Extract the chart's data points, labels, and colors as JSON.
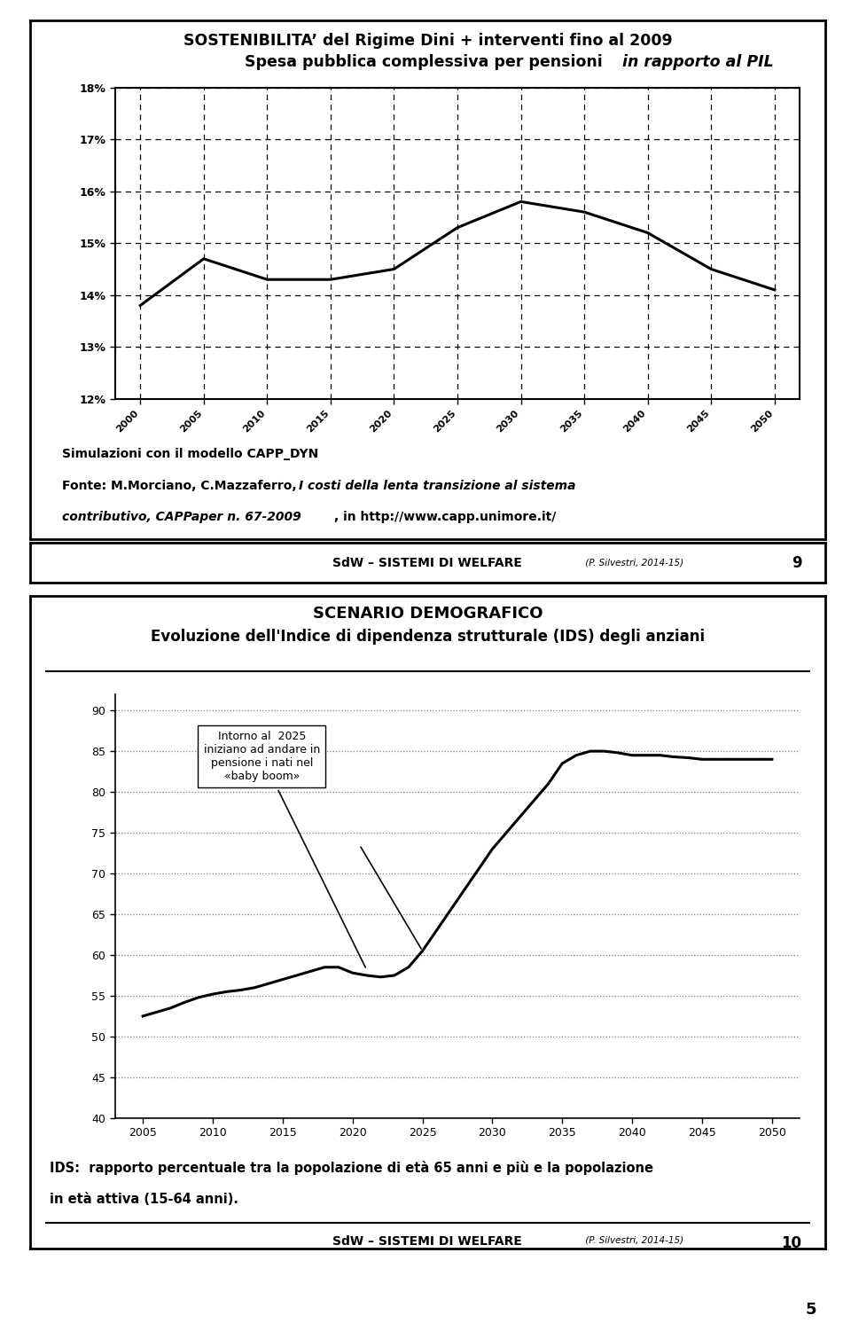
{
  "page_bg": "#ffffff",
  "slide1_title1": "SOSTENIBILITA’ del Rigime Dini + interventi fino al 2009",
  "slide1_title2": "Spesa pubblica complessiva per pensioni ",
  "slide1_title2_italic": "in rapporto al PIL",
  "chart1_x": [
    2000,
    2005,
    2010,
    2015,
    2020,
    2025,
    2030,
    2035,
    2040,
    2045,
    2050
  ],
  "chart1_y": [
    13.8,
    14.7,
    14.3,
    14.3,
    14.5,
    15.3,
    15.8,
    15.6,
    15.2,
    14.5,
    14.1
  ],
  "chart1_ylim": [
    12,
    18
  ],
  "chart1_yticks": [
    12,
    13,
    14,
    15,
    16,
    17,
    18
  ],
  "chart1_ytick_labels": [
    "12%",
    "13%",
    "14%",
    "15%",
    "16%",
    "17%",
    "18%"
  ],
  "slide1_note1": "Simulazioni con il modello CAPP_DYN",
  "slide1_note2a": "Fonte: M.Morciano, C.Mazzaferro, ",
  "slide1_note2b": "I costi della lenta transizione al sistema",
  "slide1_note3b": "contributivo, CAPPaper n. 67-2009",
  "slide1_note3c": ", in http://www.capp.unimore.it/",
  "footer1_main": "SdW – SISTEMI DI WELFARE",
  "footer1_small": " (P. Silvestri, 2014-15)",
  "footer1_num": "9",
  "slide2_title1": "SCENARIO DEMOGRAFICO",
  "slide2_title2": "Evoluzione dell'Indice di dipendenza strutturale (IDS) degli anziani",
  "chart2_x": [
    2005,
    2006,
    2007,
    2008,
    2009,
    2010,
    2011,
    2012,
    2013,
    2014,
    2015,
    2016,
    2017,
    2018,
    2019,
    2020,
    2021,
    2022,
    2023,
    2024,
    2025,
    2026,
    2027,
    2028,
    2029,
    2030,
    2031,
    2032,
    2033,
    2034,
    2035,
    2036,
    2037,
    2038,
    2039,
    2040,
    2041,
    2042,
    2043,
    2044,
    2045,
    2046,
    2047,
    2048,
    2049,
    2050
  ],
  "chart2_y": [
    52.5,
    53.0,
    53.5,
    54.2,
    54.8,
    55.2,
    55.5,
    55.7,
    56.0,
    56.5,
    57.0,
    57.5,
    58.0,
    58.5,
    58.5,
    57.8,
    57.5,
    57.3,
    57.5,
    58.5,
    60.5,
    63.0,
    65.5,
    68.0,
    70.5,
    73.0,
    75.0,
    77.0,
    79.0,
    81.0,
    83.5,
    84.5,
    85.0,
    85.0,
    84.8,
    84.5,
    84.5,
    84.5,
    84.3,
    84.2,
    84.0,
    84.0,
    84.0,
    84.0,
    84.0,
    84.0
  ],
  "chart2_ylim": [
    40,
    92
  ],
  "chart2_yticks": [
    40,
    45,
    50,
    55,
    60,
    65,
    70,
    75,
    80,
    85,
    90
  ],
  "chart2_xticks": [
    2005,
    2010,
    2015,
    2020,
    2025,
    2030,
    2035,
    2040,
    2045,
    2050
  ],
  "annotation_text": "Intorno al  2025\niniziano ad andare in\npensione i nati nel\n«baby boom»",
  "footer2_main": "SdW – SISTEMI DI WELFARE",
  "footer2_small": " (P. Silvestri, 2014-15)",
  "footer2_num": "10",
  "ids_note1": "IDS:  rapporto percentuale tra la popolazione di età 65 anni e più e la popolazione",
  "ids_note2": "in età attiva (15-64 anni).",
  "page_num": "5"
}
